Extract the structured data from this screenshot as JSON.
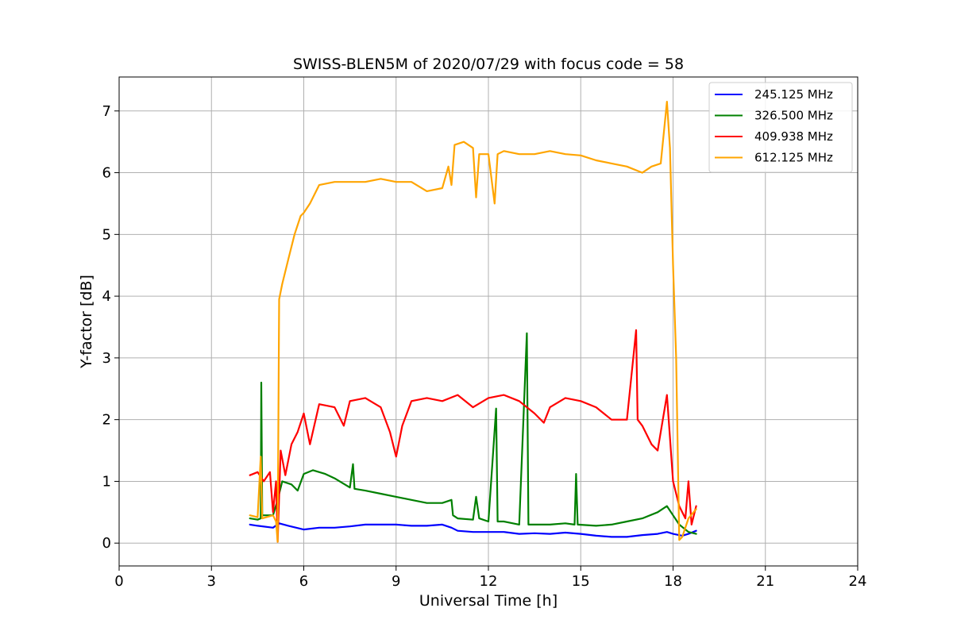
{
  "chart_data": {
    "type": "line",
    "title": "SWISS-BLEN5M of 2020/07/29 with focus code = 58",
    "xlabel": "Universal Time [h]",
    "ylabel": "Y-factor [dB]",
    "xlim": [
      0,
      24
    ],
    "ylim": [
      -0.37,
      7.55
    ],
    "xticks": [
      0,
      3,
      6,
      9,
      12,
      15,
      18,
      21,
      24
    ],
    "yticks": [
      0,
      1,
      2,
      3,
      4,
      5,
      6,
      7
    ],
    "grid": true,
    "legend_position": "top-right",
    "series": [
      {
        "name": "245.125 MHz",
        "color": "#0000ff",
        "points": [
          [
            4.25,
            0.3
          ],
          [
            4.5,
            0.28
          ],
          [
            5.0,
            0.25
          ],
          [
            5.2,
            0.32
          ],
          [
            5.5,
            0.28
          ],
          [
            6.0,
            0.22
          ],
          [
            6.5,
            0.25
          ],
          [
            7.0,
            0.25
          ],
          [
            7.5,
            0.27
          ],
          [
            8.0,
            0.3
          ],
          [
            8.5,
            0.3
          ],
          [
            9.0,
            0.3
          ],
          [
            9.5,
            0.28
          ],
          [
            10.0,
            0.28
          ],
          [
            10.5,
            0.3
          ],
          [
            10.8,
            0.25
          ],
          [
            11.0,
            0.2
          ],
          [
            11.5,
            0.18
          ],
          [
            12.0,
            0.18
          ],
          [
            12.5,
            0.18
          ],
          [
            13.0,
            0.15
          ],
          [
            13.5,
            0.16
          ],
          [
            14.0,
            0.15
          ],
          [
            14.5,
            0.17
          ],
          [
            15.0,
            0.15
          ],
          [
            15.5,
            0.12
          ],
          [
            16.0,
            0.1
          ],
          [
            16.5,
            0.1
          ],
          [
            17.0,
            0.13
          ],
          [
            17.5,
            0.15
          ],
          [
            17.8,
            0.18
          ],
          [
            18.0,
            0.15
          ],
          [
            18.3,
            0.12
          ],
          [
            18.5,
            0.15
          ],
          [
            18.75,
            0.2
          ]
        ]
      },
      {
        "name": "326.500 MHz",
        "color": "#008000",
        "points": [
          [
            4.25,
            0.4
          ],
          [
            4.5,
            0.38
          ],
          [
            4.6,
            0.4
          ],
          [
            4.62,
            2.6
          ],
          [
            4.65,
            0.45
          ],
          [
            5.0,
            0.45
          ],
          [
            5.15,
            0.7
          ],
          [
            5.3,
            1.0
          ],
          [
            5.6,
            0.95
          ],
          [
            5.8,
            0.85
          ],
          [
            6.0,
            1.12
          ],
          [
            6.3,
            1.18
          ],
          [
            6.7,
            1.12
          ],
          [
            7.0,
            1.05
          ],
          [
            7.5,
            0.9
          ],
          [
            7.6,
            1.28
          ],
          [
            7.65,
            0.88
          ],
          [
            8.0,
            0.85
          ],
          [
            8.5,
            0.8
          ],
          [
            9.0,
            0.75
          ],
          [
            9.5,
            0.7
          ],
          [
            10.0,
            0.65
          ],
          [
            10.5,
            0.65
          ],
          [
            10.8,
            0.7
          ],
          [
            10.85,
            0.45
          ],
          [
            11.0,
            0.4
          ],
          [
            11.5,
            0.38
          ],
          [
            11.6,
            0.75
          ],
          [
            11.7,
            0.4
          ],
          [
            12.0,
            0.35
          ],
          [
            12.25,
            2.18
          ],
          [
            12.3,
            0.35
          ],
          [
            12.5,
            0.35
          ],
          [
            13.0,
            0.3
          ],
          [
            13.25,
            3.4
          ],
          [
            13.3,
            0.3
          ],
          [
            13.5,
            0.3
          ],
          [
            14.0,
            0.3
          ],
          [
            14.5,
            0.32
          ],
          [
            14.8,
            0.3
          ],
          [
            14.85,
            1.12
          ],
          [
            14.9,
            0.3
          ],
          [
            15.5,
            0.28
          ],
          [
            16.0,
            0.3
          ],
          [
            16.5,
            0.35
          ],
          [
            17.0,
            0.4
          ],
          [
            17.5,
            0.5
          ],
          [
            17.8,
            0.6
          ],
          [
            18.0,
            0.45
          ],
          [
            18.2,
            0.3
          ],
          [
            18.5,
            0.18
          ],
          [
            18.75,
            0.15
          ]
        ]
      },
      {
        "name": "409.938 MHz",
        "color": "#ff0000",
        "points": [
          [
            4.25,
            1.1
          ],
          [
            4.5,
            1.15
          ],
          [
            4.7,
            1.0
          ],
          [
            4.9,
            1.15
          ],
          [
            5.0,
            0.5
          ],
          [
            5.1,
            1.0
          ],
          [
            5.15,
            0.02
          ],
          [
            5.25,
            1.5
          ],
          [
            5.4,
            1.1
          ],
          [
            5.6,
            1.6
          ],
          [
            5.8,
            1.8
          ],
          [
            6.0,
            2.1
          ],
          [
            6.2,
            1.6
          ],
          [
            6.5,
            2.25
          ],
          [
            7.0,
            2.2
          ],
          [
            7.3,
            1.9
          ],
          [
            7.5,
            2.3
          ],
          [
            8.0,
            2.35
          ],
          [
            8.5,
            2.2
          ],
          [
            8.8,
            1.8
          ],
          [
            9.0,
            1.4
          ],
          [
            9.2,
            1.9
          ],
          [
            9.5,
            2.3
          ],
          [
            10.0,
            2.35
          ],
          [
            10.5,
            2.3
          ],
          [
            11.0,
            2.4
          ],
          [
            11.5,
            2.2
          ],
          [
            12.0,
            2.35
          ],
          [
            12.5,
            2.4
          ],
          [
            13.0,
            2.3
          ],
          [
            13.5,
            2.1
          ],
          [
            13.8,
            1.95
          ],
          [
            14.0,
            2.2
          ],
          [
            14.5,
            2.35
          ],
          [
            15.0,
            2.3
          ],
          [
            15.5,
            2.2
          ],
          [
            16.0,
            2.0
          ],
          [
            16.5,
            2.0
          ],
          [
            16.8,
            3.45
          ],
          [
            16.85,
            2.0
          ],
          [
            17.0,
            1.9
          ],
          [
            17.3,
            1.6
          ],
          [
            17.5,
            1.5
          ],
          [
            17.8,
            2.4
          ],
          [
            18.0,
            1.0
          ],
          [
            18.2,
            0.6
          ],
          [
            18.4,
            0.4
          ],
          [
            18.5,
            1.0
          ],
          [
            18.6,
            0.3
          ],
          [
            18.75,
            0.6
          ]
        ]
      },
      {
        "name": "612.125 MHz",
        "color": "#ffa500",
        "points": [
          [
            4.25,
            0.45
          ],
          [
            4.5,
            0.42
          ],
          [
            4.6,
            1.4
          ],
          [
            4.65,
            0.4
          ],
          [
            5.0,
            0.45
          ],
          [
            5.1,
            0.35
          ],
          [
            5.15,
            0.02
          ],
          [
            5.2,
            3.95
          ],
          [
            5.3,
            4.2
          ],
          [
            5.5,
            4.6
          ],
          [
            5.7,
            5.0
          ],
          [
            5.9,
            5.3
          ],
          [
            6.0,
            5.35
          ],
          [
            6.2,
            5.5
          ],
          [
            6.5,
            5.8
          ],
          [
            7.0,
            5.85
          ],
          [
            7.5,
            5.85
          ],
          [
            8.0,
            5.85
          ],
          [
            8.5,
            5.9
          ],
          [
            9.0,
            5.85
          ],
          [
            9.5,
            5.85
          ],
          [
            10.0,
            5.7
          ],
          [
            10.5,
            5.75
          ],
          [
            10.7,
            6.1
          ],
          [
            10.8,
            5.8
          ],
          [
            10.9,
            6.45
          ],
          [
            11.2,
            6.5
          ],
          [
            11.5,
            6.4
          ],
          [
            11.6,
            5.6
          ],
          [
            11.7,
            6.3
          ],
          [
            12.0,
            6.3
          ],
          [
            12.2,
            5.5
          ],
          [
            12.3,
            6.3
          ],
          [
            12.5,
            6.35
          ],
          [
            13.0,
            6.3
          ],
          [
            13.5,
            6.3
          ],
          [
            14.0,
            6.35
          ],
          [
            14.5,
            6.3
          ],
          [
            15.0,
            6.28
          ],
          [
            15.5,
            6.2
          ],
          [
            16.0,
            6.15
          ],
          [
            16.5,
            6.1
          ],
          [
            17.0,
            6.0
          ],
          [
            17.3,
            6.1
          ],
          [
            17.6,
            6.15
          ],
          [
            17.8,
            7.15
          ],
          [
            17.9,
            6.4
          ],
          [
            18.0,
            4.5
          ],
          [
            18.1,
            3.0
          ],
          [
            18.2,
            0.05
          ],
          [
            18.3,
            0.1
          ],
          [
            18.5,
            0.4
          ],
          [
            18.75,
            0.55
          ]
        ]
      }
    ]
  }
}
